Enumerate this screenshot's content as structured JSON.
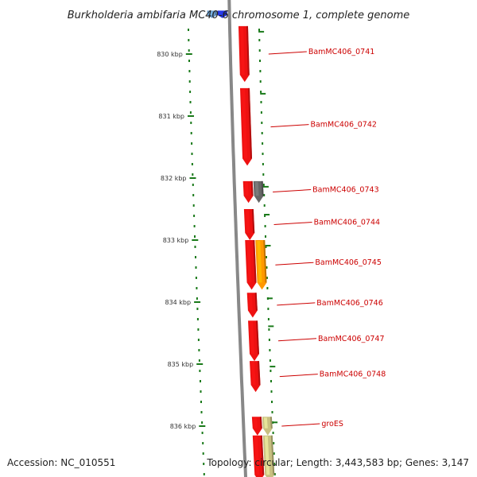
{
  "title": "Burkholderia ambifaria MC40-6 chromosome 1, complete genome",
  "footer": {
    "accession": "Accession: NC_010551",
    "summary": "Topology: circular; Length: 3,443,583 bp; Genes: 3,147"
  },
  "ruler": {
    "unit": "kbp",
    "ticks": [
      {
        "label": "830 kbp",
        "kbp": 830
      },
      {
        "label": "831 kbp",
        "kbp": 831
      },
      {
        "label": "832 kbp",
        "kbp": 832
      },
      {
        "label": "833 kbp",
        "kbp": 833
      },
      {
        "label": "834 kbp",
        "kbp": 834
      },
      {
        "label": "835 kbp",
        "kbp": 835
      },
      {
        "label": "836 kbp",
        "kbp": 836
      }
    ]
  },
  "colors": {
    "cds": "#ee1111",
    "cds_gray": "#666666",
    "cds_orange": "#ff9900",
    "cds_khaki": "#c8c080",
    "cds_blue_dark": "#2233dd",
    "cds_blue_light": "#6699cc",
    "backbone": "#888888",
    "tick": "#1a7a1a",
    "label": "#cc0000"
  },
  "genes": [
    {
      "name": "BamMC406_0741",
      "start_kbp": 829.55,
      "end_kbp": 830.45,
      "strand": "+",
      "track": 0,
      "color": "cds",
      "label": true
    },
    {
      "name": "BamMC406_0742",
      "start_kbp": 830.55,
      "end_kbp": 831.8,
      "strand": "+",
      "track": 0,
      "color": "cds",
      "label": true
    },
    {
      "name": "BamMC406_0743",
      "start_kbp": 832.05,
      "end_kbp": 832.4,
      "strand": "+",
      "track": 0,
      "color": "cds",
      "label": true
    },
    {
      "name": "",
      "start_kbp": 832.05,
      "end_kbp": 832.4,
      "strand": "+",
      "track": 1,
      "color": "cds_gray",
      "label": false
    },
    {
      "name": "BamMC406_0744",
      "start_kbp": 832.5,
      "end_kbp": 833.0,
      "strand": "+",
      "track": 0,
      "color": "cds",
      "label": true
    },
    {
      "name": "BamMC406_0745",
      "start_kbp": 833.0,
      "end_kbp": 833.8,
      "strand": "+",
      "track": 0,
      "color": "cds",
      "label": true
    },
    {
      "name": "",
      "start_kbp": 833.0,
      "end_kbp": 833.8,
      "strand": "+",
      "track": 1,
      "color": "cds_orange",
      "label": false
    },
    {
      "name": "BamMC406_0746",
      "start_kbp": 833.85,
      "end_kbp": 834.25,
      "strand": "+",
      "track": 0,
      "color": "cds",
      "label": true
    },
    {
      "name": "BamMC406_0747",
      "start_kbp": 834.3,
      "end_kbp": 834.95,
      "strand": "+",
      "track": 0,
      "color": "cds",
      "label": true
    },
    {
      "name": "BamMC406_0748",
      "start_kbp": 834.95,
      "end_kbp": 835.45,
      "strand": "+",
      "track": 0,
      "color": "cds",
      "label": true
    },
    {
      "name": "groES",
      "start_kbp": 835.85,
      "end_kbp": 836.15,
      "strand": "+",
      "track": 0,
      "color": "cds",
      "label": true
    },
    {
      "name": "",
      "start_kbp": 835.85,
      "end_kbp": 836.15,
      "strand": "+",
      "track": 1,
      "color": "cds_khaki",
      "label": false
    },
    {
      "name": "",
      "start_kbp": 836.15,
      "end_kbp": 836.9,
      "strand": "+",
      "track": 0,
      "color": "cds",
      "label": false
    },
    {
      "name": "",
      "start_kbp": 836.15,
      "end_kbp": 836.9,
      "strand": "+",
      "track": 1,
      "color": "cds_khaki",
      "label": false
    },
    {
      "name": "",
      "start_kbp": 829.3,
      "end_kbp": 829.42,
      "strand": "+",
      "track": -2,
      "color": "cds_blue_dark",
      "label": false
    },
    {
      "name": "",
      "start_kbp": 829.3,
      "end_kbp": 829.42,
      "strand": "+",
      "track": -3,
      "color": "cds_blue_light",
      "label": false
    }
  ]
}
